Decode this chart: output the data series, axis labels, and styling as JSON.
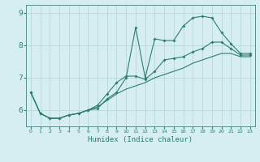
{
  "title": "",
  "xlabel": "Humidex (Indice chaleur)",
  "bg_color": "#d6eef2",
  "grid_color": "#b8d8dc",
  "line_color": "#2e7d72",
  "spine_color": "#5a9090",
  "xlim": [
    -0.5,
    23.5
  ],
  "ylim": [
    5.5,
    9.25
  ],
  "yticks": [
    6,
    7,
    8,
    9
  ],
  "xticks": [
    0,
    1,
    2,
    3,
    4,
    5,
    6,
    7,
    8,
    9,
    10,
    11,
    12,
    13,
    14,
    15,
    16,
    17,
    18,
    19,
    20,
    21,
    22,
    23
  ],
  "series1_x": [
    0,
    1,
    2,
    3,
    4,
    5,
    6,
    7,
    8,
    9,
    10,
    11,
    12,
    13,
    14,
    15,
    16,
    17,
    18,
    19,
    20,
    21,
    22,
    23
  ],
  "series1_y": [
    6.55,
    5.9,
    5.75,
    5.75,
    5.85,
    5.9,
    6.0,
    6.05,
    6.35,
    6.55,
    7.0,
    8.55,
    7.0,
    8.2,
    8.15,
    8.15,
    8.6,
    8.85,
    8.9,
    8.85,
    8.4,
    8.05,
    7.75,
    7.75
  ],
  "series2_x": [
    0,
    1,
    2,
    3,
    4,
    5,
    6,
    7,
    8,
    9,
    10,
    11,
    12,
    13,
    14,
    15,
    16,
    17,
    18,
    19,
    20,
    21,
    22,
    23
  ],
  "series2_y": [
    6.55,
    5.9,
    5.75,
    5.75,
    5.85,
    5.9,
    6.0,
    6.15,
    6.5,
    6.85,
    7.05,
    7.05,
    6.95,
    7.2,
    7.55,
    7.6,
    7.65,
    7.8,
    7.9,
    8.1,
    8.1,
    7.9,
    7.7,
    7.7
  ],
  "series3_x": [
    0,
    1,
    2,
    3,
    4,
    5,
    6,
    7,
    8,
    9,
    10,
    11,
    12,
    13,
    14,
    15,
    16,
    17,
    18,
    19,
    20,
    21,
    22,
    23
  ],
  "series3_y": [
    6.55,
    5.9,
    5.75,
    5.75,
    5.85,
    5.9,
    6.0,
    6.1,
    6.3,
    6.5,
    6.65,
    6.75,
    6.85,
    7.0,
    7.1,
    7.2,
    7.3,
    7.45,
    7.55,
    7.65,
    7.75,
    7.75,
    7.65,
    7.65
  ]
}
